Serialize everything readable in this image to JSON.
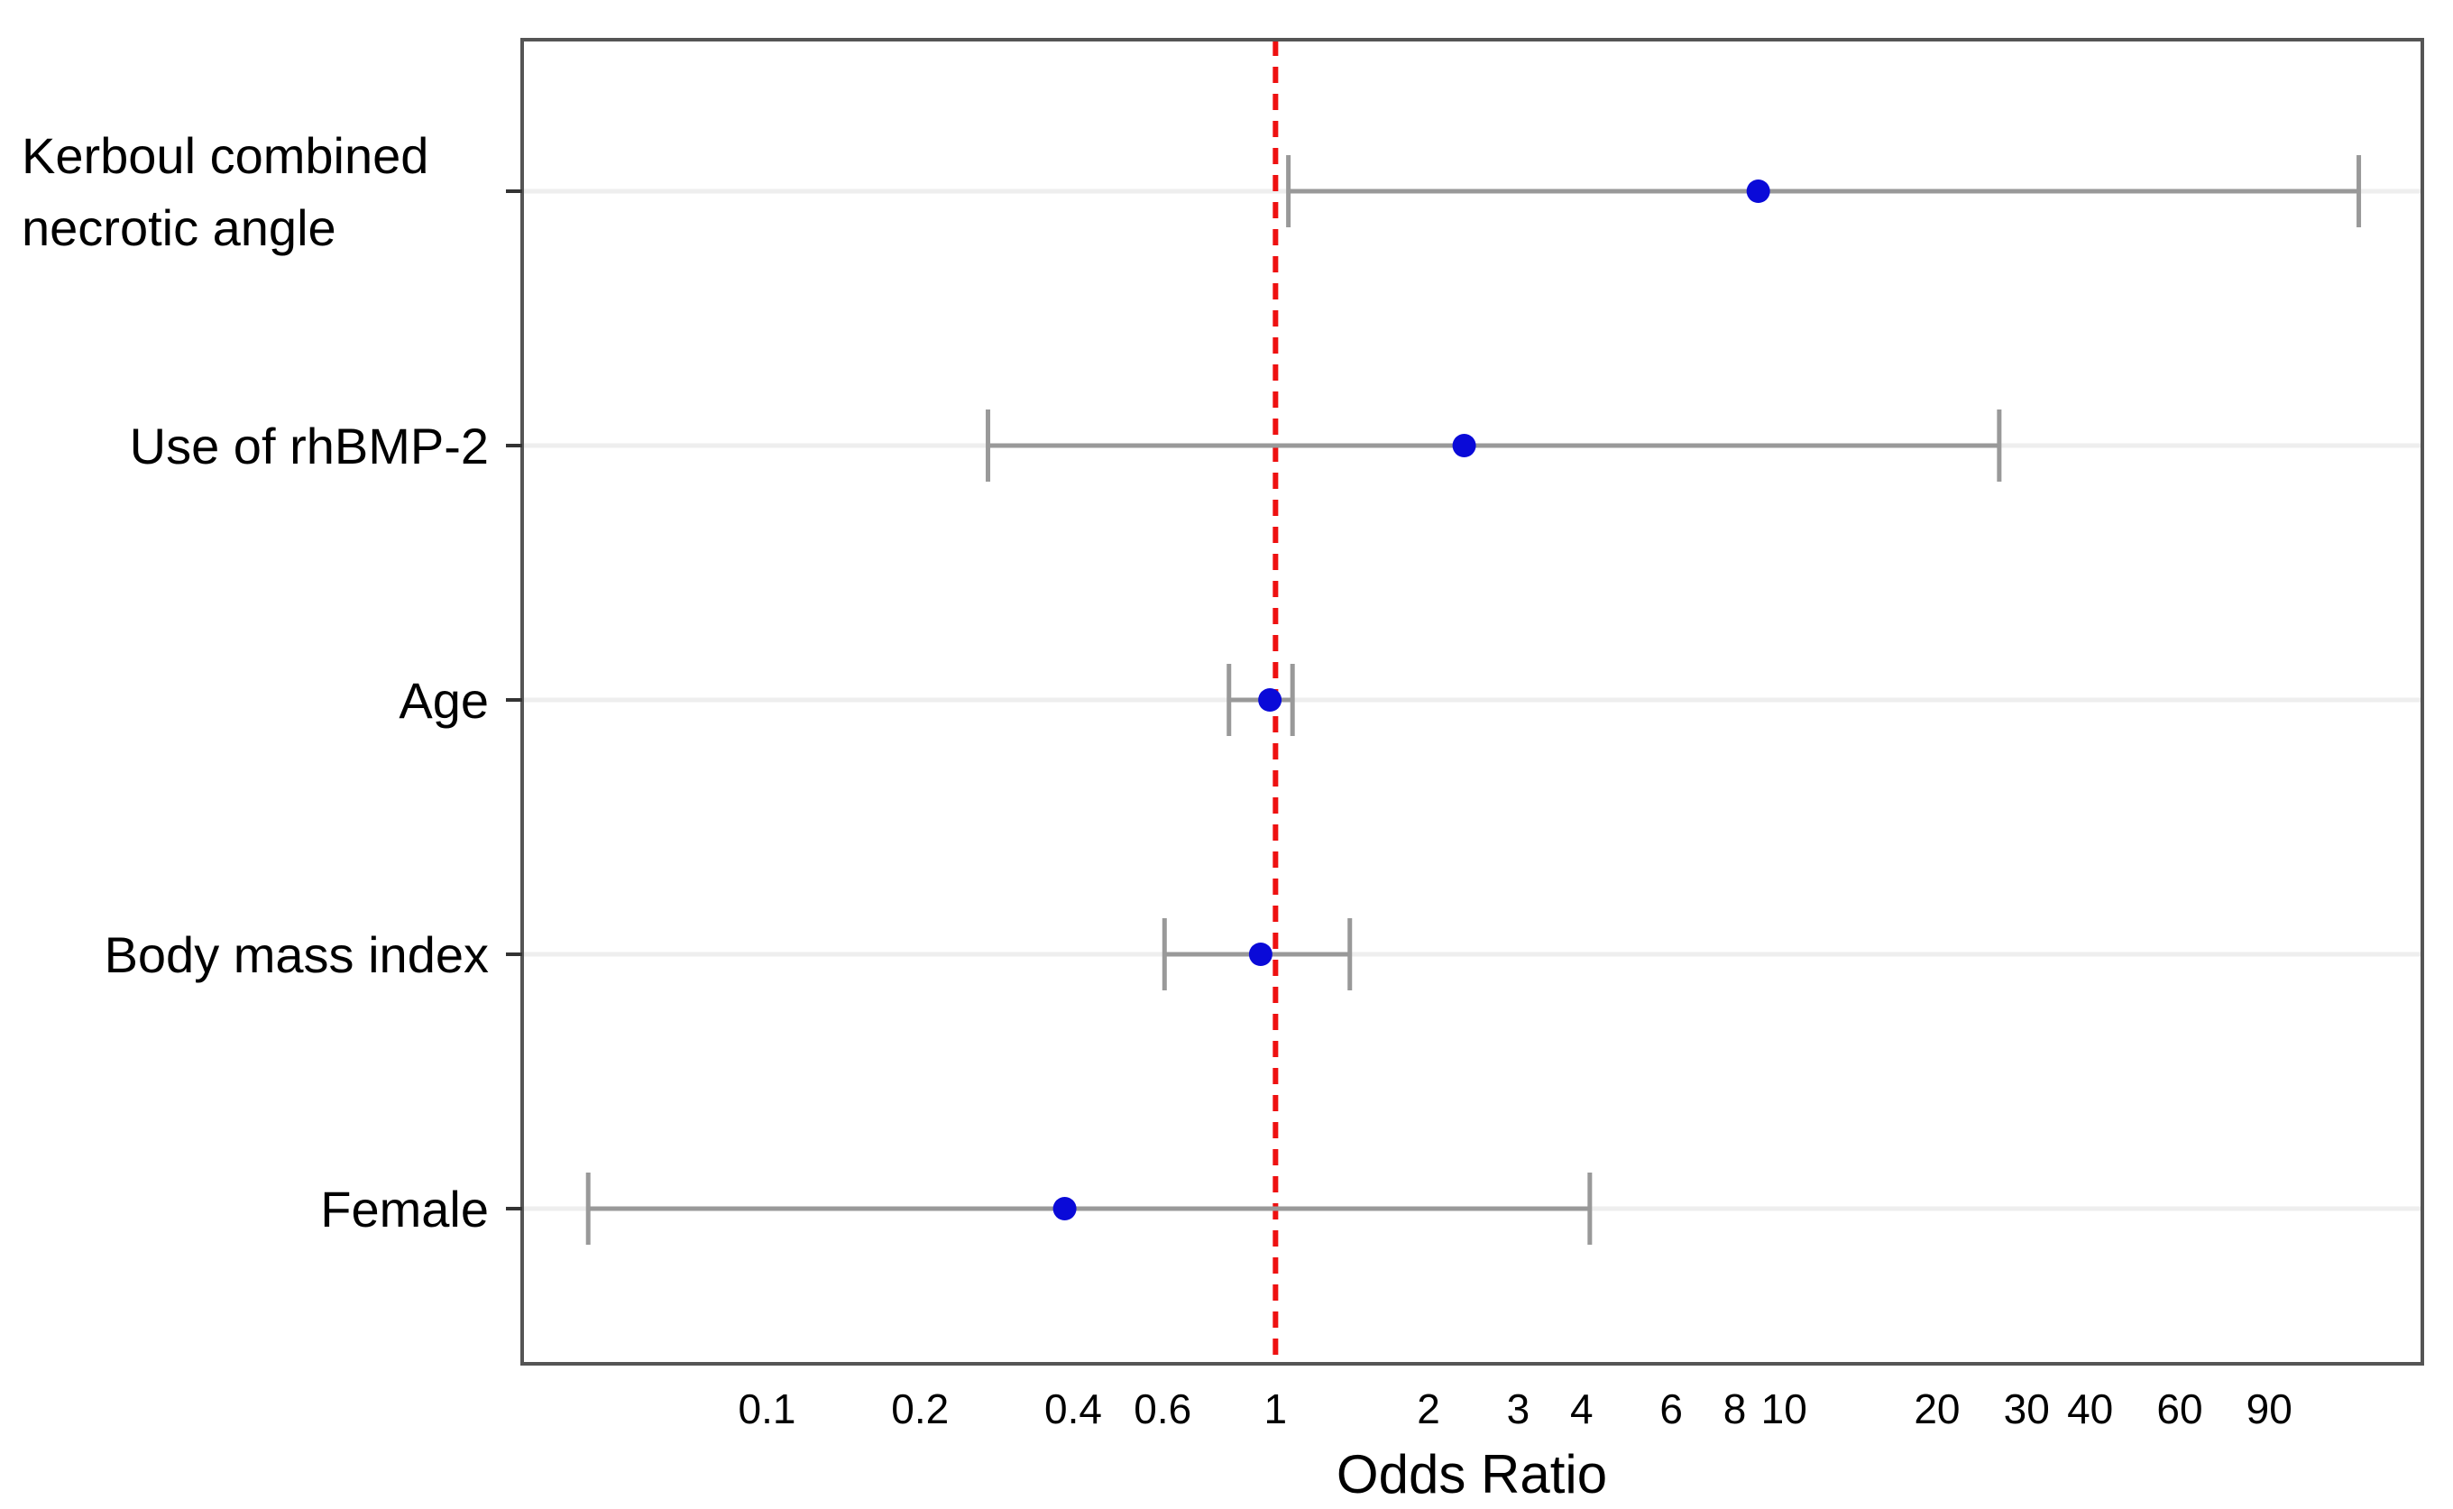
{
  "chart_data": {
    "type": "forest",
    "xlabel": "Odds Ratio",
    "x_scale": "log",
    "xlim": [
      0.033,
      180
    ],
    "reference_line": 1,
    "x_ticks": [
      0.1,
      0.2,
      0.4,
      0.6,
      1,
      2,
      3,
      4,
      6,
      8,
      10,
      20,
      30,
      40,
      60,
      90
    ],
    "x_tick_labels": [
      "0.1",
      "0.2",
      "0.4",
      "0.6",
      "1",
      "2",
      "3",
      "4",
      "6",
      "8",
      "10",
      "20",
      "30",
      "40",
      "60",
      "90"
    ],
    "grid": "horizontal",
    "rows": [
      {
        "label_lines": [
          "Kerboul combined",
          "necrotic angle"
        ],
        "or": 8.9,
        "lower": 1.06,
        "upper": 135
      },
      {
        "label_lines": [
          "Use of rhBMP-2"
        ],
        "or": 2.35,
        "lower": 0.272,
        "upper": 26.5
      },
      {
        "label_lines": [
          "Age"
        ],
        "or": 0.975,
        "lower": 0.81,
        "upper": 1.08
      },
      {
        "label_lines": [
          "Body mass index"
        ],
        "or": 0.935,
        "lower": 0.605,
        "upper": 1.4
      },
      {
        "label_lines": [
          "Female"
        ],
        "or": 0.385,
        "lower": 0.0445,
        "upper": 4.15
      }
    ],
    "colors": {
      "point": "#0a0ad8",
      "ci": "#999999",
      "reference": "#ee1111",
      "grid": "#eeeeee",
      "frame": "#555555"
    }
  }
}
